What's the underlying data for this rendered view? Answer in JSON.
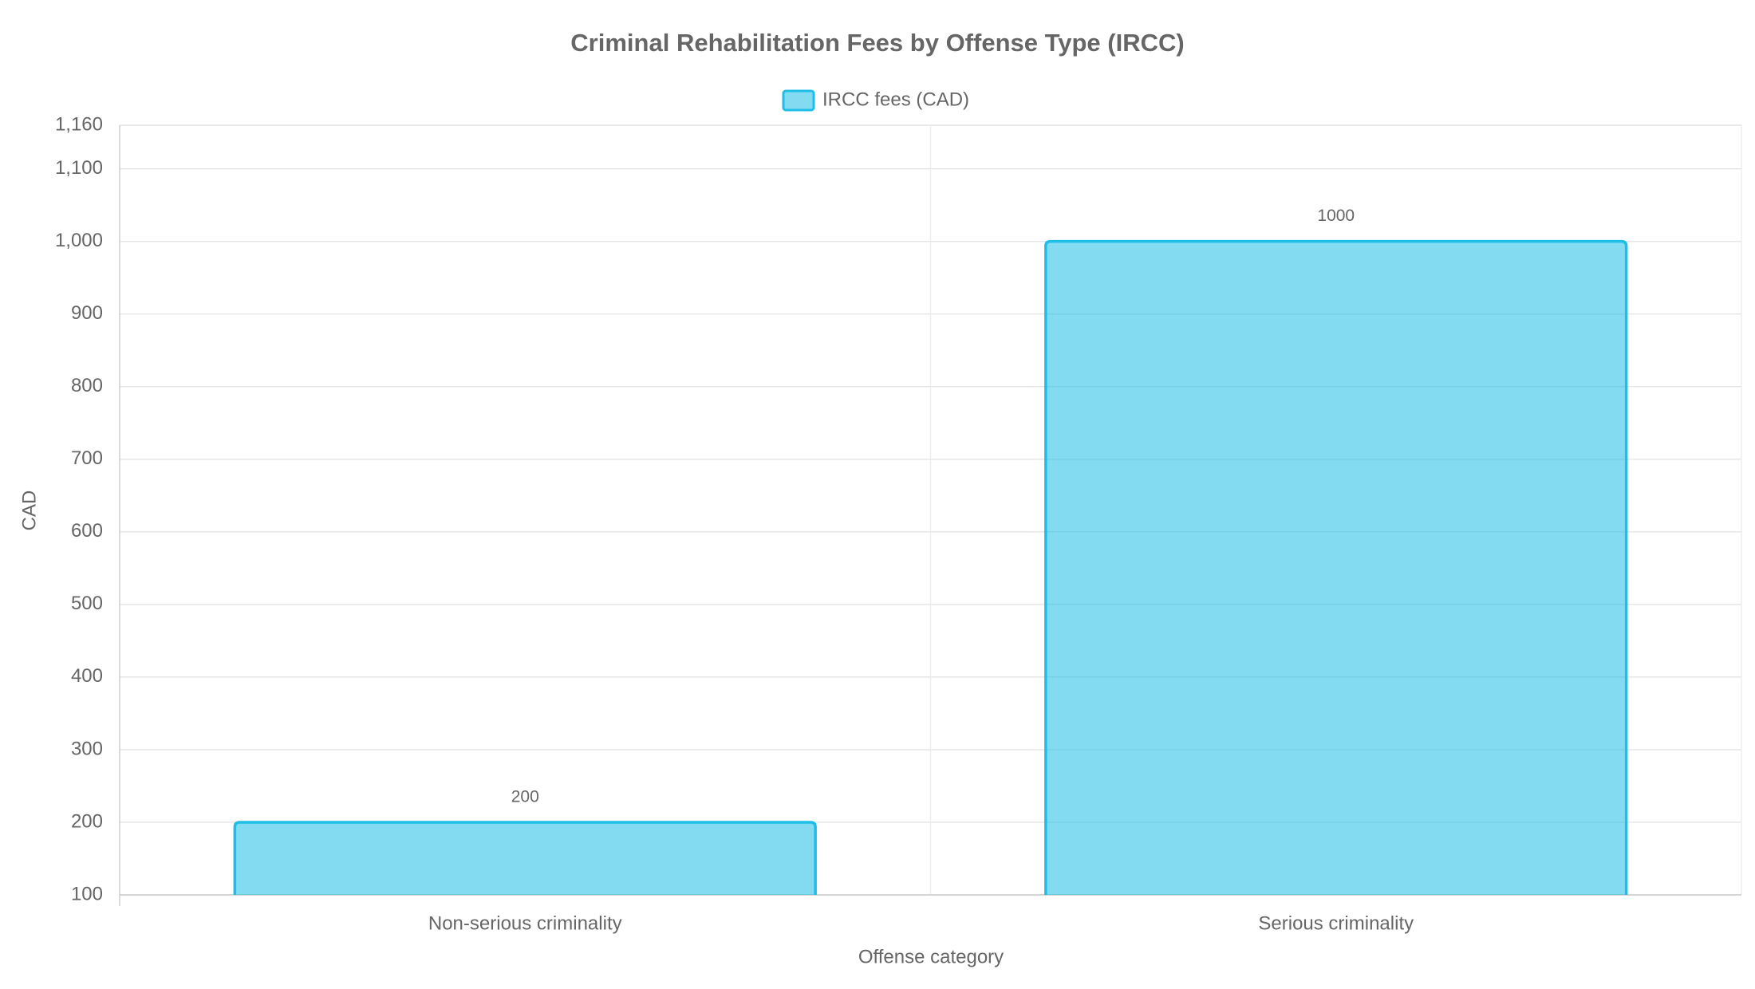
{
  "chart_data": {
    "type": "bar",
    "title": "Criminal Rehabilitation Fees by Offense Type (IRCC)",
    "x_label": "Offense category",
    "y_label": "CAD",
    "categories": [
      "Non-serious criminality",
      "Serious criminality"
    ],
    "series": [
      {
        "name": "IRCC fees (CAD)",
        "color": "#1ebee8",
        "values": [
          200,
          1000
        ]
      }
    ],
    "ylim": [
      100,
      1160
    ],
    "yticks": [
      100,
      200,
      300,
      400,
      500,
      600,
      700,
      800,
      900,
      {
        "value": 1000,
        "label": "1,000"
      },
      {
        "value": 1100,
        "label": "1,100"
      },
      {
        "value": 1160,
        "label": "1,160"
      }
    ],
    "grid": true,
    "legend": "top"
  }
}
